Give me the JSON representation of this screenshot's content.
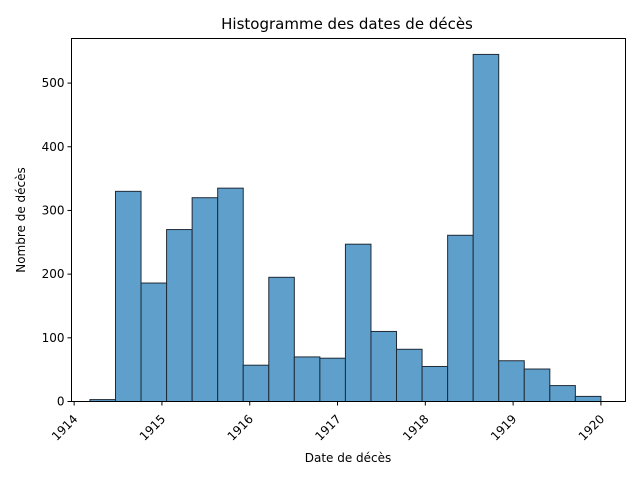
{
  "chart_data": {
    "type": "bar",
    "title": "Histogramme des dates de décès",
    "xlabel": "Date de décès",
    "ylabel": "Nombre de décès",
    "xlim": [
      1913.97,
      1920.28
    ],
    "ylim": [
      0,
      570
    ],
    "x_ticks": [
      {
        "value": 1914,
        "label": "1914"
      },
      {
        "value": 1915,
        "label": "1915"
      },
      {
        "value": 1916,
        "label": "1916"
      },
      {
        "value": 1917,
        "label": "1917"
      },
      {
        "value": 1918,
        "label": "1918"
      },
      {
        "value": 1919,
        "label": "1919"
      },
      {
        "value": 1920,
        "label": "1920"
      }
    ],
    "y_ticks": [
      {
        "value": 0,
        "label": "0"
      },
      {
        "value": 100,
        "label": "100"
      },
      {
        "value": 200,
        "label": "200"
      },
      {
        "value": 300,
        "label": "300"
      },
      {
        "value": 400,
        "label": "400"
      },
      {
        "value": 500,
        "label": "500"
      }
    ],
    "bin_start": 1914.18,
    "bin_width": 0.291,
    "counts": [
      3,
      330,
      186,
      270,
      320,
      335,
      57,
      195,
      70,
      68,
      247,
      110,
      82,
      55,
      261,
      545,
      64,
      51,
      25,
      8
    ],
    "bar_color": "#5f9fcc",
    "edge_color": "#1f2b36",
    "grid": false,
    "legend": "none"
  }
}
